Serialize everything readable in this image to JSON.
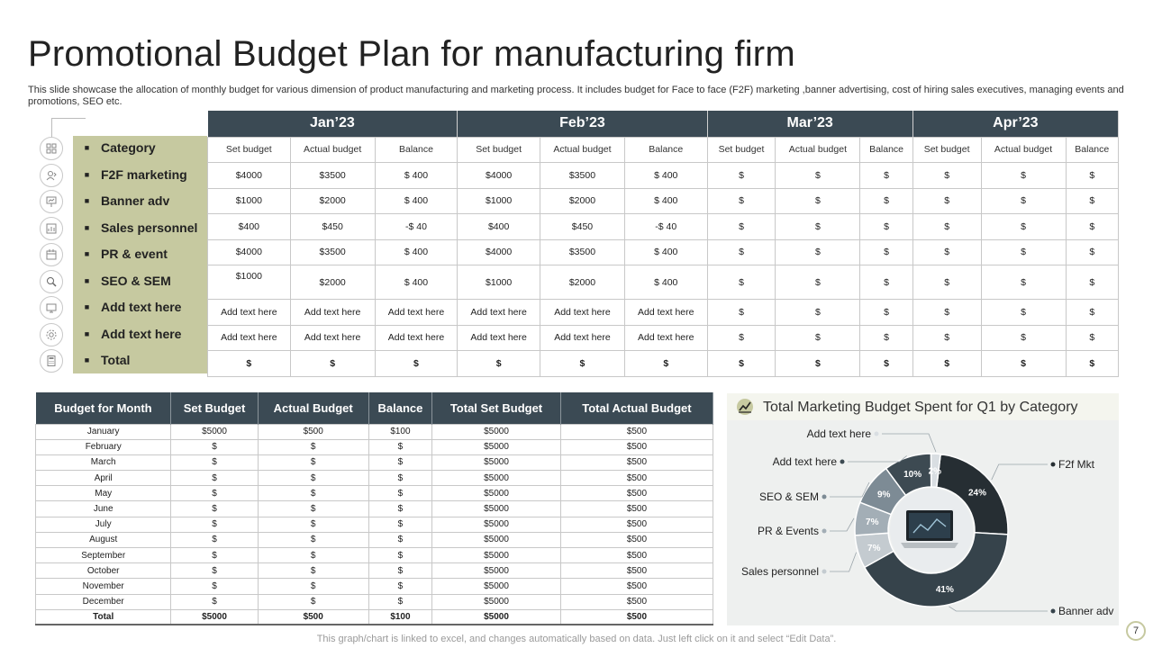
{
  "title": "Promotional Budget Plan for manufacturing firm",
  "subtitle": "This slide showcase the allocation of monthly budget for various dimension of product manufacturing and marketing process. It includes budget for Face to face (F2F) marketing ,banner advertising, cost of hiring sales executives, managing events and promotions, SEO etc.",
  "categories": [
    "Category",
    "F2F marketing",
    "Banner adv",
    "Sales personnel",
    "PR & event",
    "SEO & SEM",
    "Add text here",
    "Add text here",
    "Total"
  ],
  "icons": [
    "grid-icon",
    "person-icon",
    "presentation-icon",
    "chart-board-icon",
    "calendar-icon",
    "search-icon",
    "monitor-icon",
    "settings-icon",
    "calculator-icon"
  ],
  "months": [
    "Jan’23",
    "Feb’23",
    "Mar’23",
    "Apr’23"
  ],
  "sub_headers": [
    "Set budget",
    "Actual budget",
    "Balance"
  ],
  "top_rows": [
    [
      "$4000",
      "$3500",
      "$ 400",
      "$4000",
      "$3500",
      "$ 400",
      "$",
      "$",
      "$",
      "$",
      "$",
      "$"
    ],
    [
      "$1000",
      "$2000",
      "$ 400",
      "$1000",
      "$2000",
      "$ 400",
      "$",
      "$",
      "$",
      "$",
      "$",
      "$"
    ],
    [
      "$400",
      "$450",
      "-$ 40",
      "$400",
      "$450",
      "-$ 40",
      "$",
      "$",
      "$",
      "$",
      "$",
      "$"
    ],
    [
      "$4000",
      "$3500",
      "$ 400",
      "$4000",
      "$3500",
      "$ 400",
      "$",
      "$",
      "$",
      "$",
      "$",
      "$"
    ],
    [
      "$1000",
      "$2000",
      "$ 400",
      "$1000",
      "$2000",
      "$ 400",
      "$",
      "$",
      "$",
      "$",
      "$",
      "$"
    ],
    [
      "Add text here",
      "Add text here",
      "Add text here",
      "Add text here",
      "Add text here",
      "Add text here",
      "$",
      "$",
      "$",
      "$",
      "$",
      "$"
    ],
    [
      "Add text here",
      "Add text here",
      "Add text here",
      "Add text here",
      "Add text here",
      "Add text here",
      "$",
      "$",
      "$",
      "$",
      "$",
      "$"
    ],
    [
      "$",
      "$",
      "$",
      "$",
      "$",
      "$",
      "$",
      "$",
      "$",
      "$",
      "$",
      "$"
    ]
  ],
  "bottom_table": {
    "headers": [
      "Budget for Month",
      "Set Budget",
      "Actual Budget",
      "Balance",
      "Total Set Budget",
      "Total Actual Budget"
    ],
    "rows": [
      [
        "January",
        "$5000",
        "$500",
        "$100",
        "$5000",
        "$500"
      ],
      [
        "February",
        "$",
        "$",
        "$",
        "$5000",
        "$500"
      ],
      [
        "March",
        "$",
        "$",
        "$",
        "$5000",
        "$500"
      ],
      [
        "April",
        "$",
        "$",
        "$",
        "$5000",
        "$500"
      ],
      [
        "May",
        "$",
        "$",
        "$",
        "$5000",
        "$500"
      ],
      [
        "June",
        "$",
        "$",
        "$",
        "$5000",
        "$500"
      ],
      [
        "July",
        "$",
        "$",
        "$",
        "$5000",
        "$500"
      ],
      [
        "August",
        "$",
        "$",
        "$",
        "$5000",
        "$500"
      ],
      [
        "September",
        "$",
        "$",
        "$",
        "$5000",
        "$500"
      ],
      [
        "October",
        "$",
        "$",
        "$",
        "$5000",
        "$500"
      ],
      [
        "November",
        "$",
        "$",
        "$",
        "$5000",
        "$500"
      ],
      [
        "December",
        "$",
        "$",
        "$",
        "$5000",
        "$500"
      ]
    ],
    "total": [
      "Total",
      "$5000",
      "$500",
      "$100",
      "$5000",
      "$500"
    ]
  },
  "chart_data": {
    "type": "pie",
    "title": "Total Marketing Budget Spent for Q1 by Category",
    "series": [
      {
        "name": "F2f Mkt",
        "label": "24%",
        "value": 24,
        "color": "#262e33"
      },
      {
        "name": "Banner adv",
        "label": "41%",
        "value": 41,
        "color": "#36434b"
      },
      {
        "name": "Sales personnel",
        "label": "7%",
        "value": 7,
        "color": "#c4cbd0"
      },
      {
        "name": "PR & Events",
        "label": "7%",
        "value": 7,
        "color": "#a3aeb6"
      },
      {
        "name": "SEO & SEM",
        "label": "9%",
        "value": 9,
        "color": "#7d8b95"
      },
      {
        "name": "Add text here",
        "label": "10%",
        "value": 10,
        "color": "#3d4a52"
      },
      {
        "name": "Add text here",
        "label": "2%",
        "value": 2,
        "color": "#d9dee2"
      }
    ]
  },
  "footer": "This graph/chart is linked to excel, and changes automatically based on data. Just left click on it and select “Edit Data”.",
  "page_number": "7"
}
